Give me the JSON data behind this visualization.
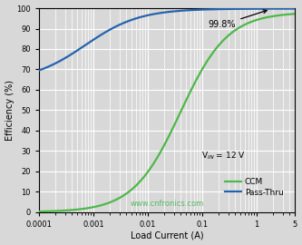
{
  "xlabel": "Load Current (A)",
  "ylabel": "Efficiency (%)",
  "xlim": [
    0.0001,
    5
  ],
  "ylim": [
    0,
    100
  ],
  "annotation_text": "99.8%",
  "ccm_color": "#4db848",
  "passthru_color": "#2464ae",
  "bg_color": "#d8d8d8",
  "grid_color": "#ffffff",
  "watermark": "www.cnfronics.com",
  "watermark_color": "#3ab54a",
  "legend_labels": [
    "CCM",
    "Pass-Thru"
  ],
  "vin_label": "V$_{IN}$ = 12 V"
}
